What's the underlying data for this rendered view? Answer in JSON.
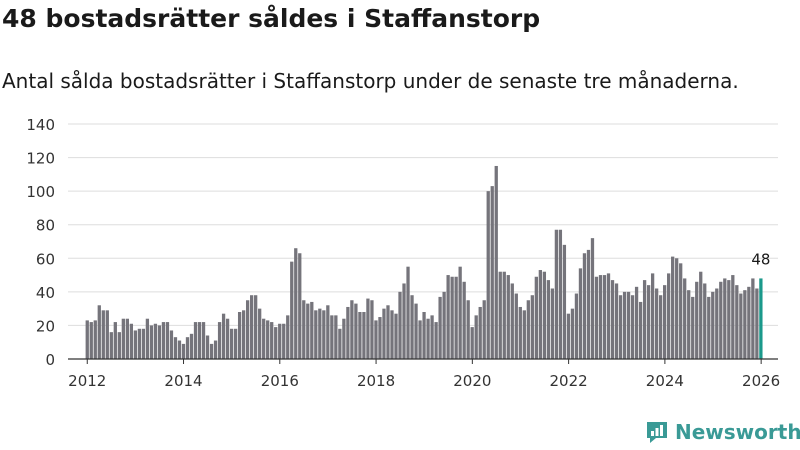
{
  "header": {
    "title": "48 bostadsrätter såldes i Staffanstorp",
    "subtitle": "Antal sålda bostadsrätter i Staffanstorp under de senaste tre månaderna."
  },
  "brand": {
    "name": "Newsworthy"
  },
  "colors": {
    "bar": "#75747b",
    "highlight": "#1b998b",
    "grid": "#dddddd",
    "axis": "#333333",
    "brand": "#3a9a96"
  },
  "chart_data": {
    "type": "bar",
    "title": "48 bostadsrätter såldes i Staffanstorp",
    "subtitle": "Antal sålda bostadsrätter i Staffanstorp under de senaste tre månaderna.",
    "xlabel": "",
    "ylabel": "",
    "ylim": [
      0,
      140
    ],
    "yticks": [
      "0",
      "20",
      "40",
      "60",
      "80",
      "100",
      "120",
      "140"
    ],
    "xlim": [
      2011.6,
      2026.35
    ],
    "xticks": [
      "2012",
      "2014",
      "2016",
      "2018",
      "2020",
      "2022",
      "2024",
      "2026"
    ],
    "grid": true,
    "x_start": 2012.0,
    "x_step": 0.0833,
    "values": [
      23,
      22,
      23,
      32,
      29,
      29,
      16,
      22,
      16,
      24,
      24,
      21,
      17,
      18,
      18,
      24,
      20,
      21,
      20,
      22,
      22,
      17,
      13,
      11,
      9,
      13,
      15,
      22,
      22,
      22,
      14,
      9,
      11,
      22,
      27,
      24,
      18,
      18,
      28,
      29,
      35,
      38,
      38,
      30,
      24,
      23,
      22,
      19,
      21,
      21,
      26,
      58,
      66,
      63,
      35,
      33,
      34,
      29,
      30,
      29,
      32,
      26,
      26,
      18,
      24,
      31,
      35,
      33,
      28,
      28,
      36,
      35,
      23,
      25,
      30,
      32,
      29,
      27,
      40,
      45,
      55,
      38,
      33,
      23,
      28,
      24,
      26,
      22,
      37,
      40,
      50,
      49,
      49,
      55,
      46,
      35,
      19,
      26,
      31,
      35,
      100,
      103,
      115,
      52,
      52,
      50,
      45,
      39,
      31,
      29,
      35,
      38,
      49,
      53,
      52,
      47,
      42,
      77,
      77,
      68,
      27,
      30,
      39,
      54,
      63,
      65,
      72,
      49,
      50,
      50,
      51,
      47,
      45,
      38,
      40,
      40,
      38,
      43,
      34,
      47,
      44,
      51,
      42,
      38,
      44,
      51,
      61,
      60,
      57,
      48,
      41,
      37,
      46,
      52,
      45,
      37,
      40,
      42,
      46,
      48,
      47,
      50,
      44,
      39,
      41,
      43,
      48,
      42,
      48
    ],
    "highlight_index": 168,
    "annotation": "48"
  }
}
